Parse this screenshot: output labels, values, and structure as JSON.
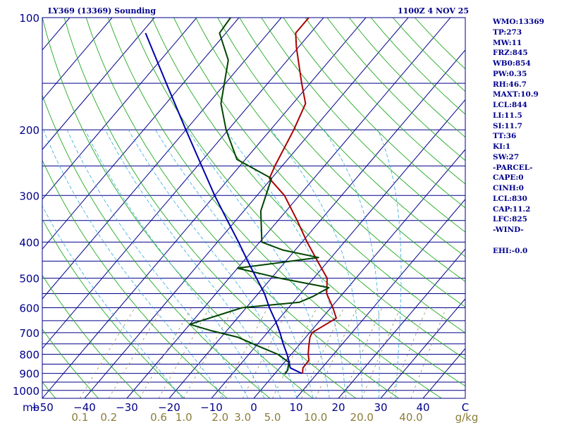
{
  "header": {
    "station": "LY369 (13369) Sounding",
    "time": "1100Z  4 NOV 25"
  },
  "stats": [
    "WMO:13369",
    "TP:273",
    "MW:11",
    "FRZ:845",
    "WB0:854",
    "PW:0.35",
    "RH:46.7",
    "MAXT:10.9",
    "LCL:844",
    "LI:11.5",
    "SI:11.7",
    "TT:36",
    "KI:1",
    "SW:27",
    "-PARCEL-",
    "CAPE:0",
    "CINH:0",
    "LCL:830",
    "CAP:11.2",
    "LFC:825",
    "-WIND-",
    "",
    "EHI:-0.0"
  ],
  "colors": {
    "frame": "#00008b",
    "isobar": "#00008b",
    "isotherm": "#00008b",
    "dry_adiabat": "#22aa22",
    "moist_adiabat": "#33aadd",
    "mixing_ratio": "#9a8a5a",
    "temperature": "#aa0000",
    "dewpoint": "#004400",
    "parcel": "#0000aa",
    "axis_text": "#00008b",
    "mixing_text": "#8b7d3a"
  },
  "chart_data": {
    "type": "line",
    "chart_kind": "skew-t log-p sounding",
    "pressure_axis_label": "mb",
    "temperature_unit": "C",
    "mixing_ratio_unit": "g/kg",
    "pressure_range": [
      1050,
      100
    ],
    "temperature_range_at_bottom": [
      -50,
      50
    ],
    "pressure_tick_labels": [
      {
        "p": 100,
        "label": "100"
      },
      {
        "p": 200,
        "label": "200"
      },
      {
        "p": 300,
        "label": "300"
      },
      {
        "p": 400,
        "label": "400"
      },
      {
        "p": 500,
        "label": "500"
      },
      {
        "p": 600,
        "label": "600"
      },
      {
        "p": 700,
        "label": "700"
      },
      {
        "p": 800,
        "label": "800"
      },
      {
        "p": 900,
        "label": "900"
      },
      {
        "p": 1000,
        "label": "1000"
      }
    ],
    "isobars": [
      100,
      150,
      200,
      250,
      300,
      350,
      400,
      450,
      500,
      550,
      600,
      650,
      700,
      750,
      800,
      850,
      900,
      950,
      1000,
      1050
    ],
    "temperature_tick_labels": [
      {
        "t": -50,
        "label": "−50"
      },
      {
        "t": -40,
        "label": "−40"
      },
      {
        "t": -30,
        "label": "−30"
      },
      {
        "t": -20,
        "label": "−20"
      },
      {
        "t": -10,
        "label": "−10"
      },
      {
        "t": 0,
        "label": "0"
      },
      {
        "t": 10,
        "label": "10"
      },
      {
        "t": 20,
        "label": "20"
      },
      {
        "t": 30,
        "label": "30"
      },
      {
        "t": 40,
        "label": "40"
      }
    ],
    "corner_unit_label": "C",
    "mixing_ratio_tick_labels": [
      {
        "w": 0.1,
        "label": "0.1"
      },
      {
        "w": 0.2,
        "label": "0.2"
      },
      {
        "w": 0.6,
        "label": "0.6"
      },
      {
        "w": 1.0,
        "label": "1.0"
      },
      {
        "w": 2.0,
        "label": "2.0"
      },
      {
        "w": 3.0,
        "label": "3.0"
      },
      {
        "w": 5.0,
        "label": "5.0"
      },
      {
        "w": 10.0,
        "label": "10.0"
      },
      {
        "w": 20.0,
        "label": "20.0"
      },
      {
        "w": 40.0,
        "label": "40.0"
      }
    ],
    "mixing_ratio_values": [
      0.1,
      0.2,
      0.4,
      0.6,
      1,
      2,
      3,
      5,
      8,
      10,
      15,
      20,
      30,
      40
    ],
    "dry_adiabats_theta_c": [
      -60,
      -50,
      -40,
      -30,
      -20,
      -10,
      0,
      10,
      20,
      30,
      40,
      50,
      60,
      70,
      80,
      90,
      100,
      110,
      120,
      130,
      140,
      150,
      160,
      170,
      180
    ],
    "moist_adiabats_start_c": [
      -20,
      -10,
      -4,
      0,
      4,
      8,
      12,
      16,
      20,
      24,
      28,
      32
    ],
    "series": [
      {
        "name": "Temperature",
        "points": [
          {
            "p": 900,
            "t": 6.5
          },
          {
            "p": 870,
            "t": 5.5
          },
          {
            "p": 830,
            "t": 5.4
          },
          {
            "p": 800,
            "t": 4.0
          },
          {
            "p": 760,
            "t": 2.5
          },
          {
            "p": 720,
            "t": 1.0
          },
          {
            "p": 700,
            "t": 0.6
          },
          {
            "p": 680,
            "t": 1.5
          },
          {
            "p": 640,
            "t": 3.4
          },
          {
            "p": 600,
            "t": 0.5
          },
          {
            "p": 550,
            "t": -3.8
          },
          {
            "p": 500,
            "t": -6.8
          },
          {
            "p": 450,
            "t": -12.5
          },
          {
            "p": 400,
            "t": -18.8
          },
          {
            "p": 350,
            "t": -25.5
          },
          {
            "p": 300,
            "t": -33.5
          },
          {
            "p": 270,
            "t": -40.5
          },
          {
            "p": 250,
            "t": -41.7
          },
          {
            "p": 200,
            "t": -44.5
          },
          {
            "p": 170,
            "t": -47.0
          },
          {
            "p": 150,
            "t": -52.0
          },
          {
            "p": 120,
            "t": -60.5
          },
          {
            "p": 110,
            "t": -63.5
          },
          {
            "p": 100,
            "t": -63.5
          }
        ]
      },
      {
        "name": "Dewpoint",
        "points": [
          {
            "p": 905,
            "t": 2.5
          },
          {
            "p": 880,
            "t": 2.3
          },
          {
            "p": 840,
            "t": 1.0
          },
          {
            "p": 800,
            "t": -3.2
          },
          {
            "p": 760,
            "t": -9.5
          },
          {
            "p": 720,
            "t": -16.0
          },
          {
            "p": 690,
            "t": -24.0
          },
          {
            "p": 665,
            "t": -30.0
          },
          {
            "p": 600,
            "t": -21.0
          },
          {
            "p": 580,
            "t": -8.5
          },
          {
            "p": 560,
            "t": -6.5
          },
          {
            "p": 530,
            "t": -4.5
          },
          {
            "p": 500,
            "t": -18.0
          },
          {
            "p": 470,
            "t": -30.0
          },
          {
            "p": 440,
            "t": -13.0
          },
          {
            "p": 420,
            "t": -23.0
          },
          {
            "p": 400,
            "t": -29.5
          },
          {
            "p": 330,
            "t": -36.0
          },
          {
            "p": 270,
            "t": -40.0
          },
          {
            "p": 240,
            "t": -52.0
          },
          {
            "p": 200,
            "t": -60.5
          },
          {
            "p": 170,
            "t": -67.0
          },
          {
            "p": 130,
            "t": -74.0
          },
          {
            "p": 110,
            "t": -81.5
          },
          {
            "p": 100,
            "t": -82.0
          }
        ]
      },
      {
        "name": "Parcel",
        "points": [
          {
            "p": 900,
            "t": 6.3
          },
          {
            "p": 870,
            "t": 2.5
          },
          {
            "p": 830,
            "t": 0.6
          },
          {
            "p": 800,
            "t": -1.0
          },
          {
            "p": 750,
            "t": -4.0
          },
          {
            "p": 700,
            "t": -7.0
          },
          {
            "p": 650,
            "t": -10.5
          },
          {
            "p": 600,
            "t": -14.5
          },
          {
            "p": 550,
            "t": -18.5
          },
          {
            "p": 500,
            "t": -23.5
          },
          {
            "p": 450,
            "t": -29.0
          },
          {
            "p": 400,
            "t": -35.0
          },
          {
            "p": 350,
            "t": -42.0
          },
          {
            "p": 300,
            "t": -50.0
          },
          {
            "p": 250,
            "t": -59.0
          },
          {
            "p": 200,
            "t": -70.0
          },
          {
            "p": 150,
            "t": -84.0
          },
          {
            "p": 110,
            "t": -99.0
          }
        ]
      }
    ]
  }
}
